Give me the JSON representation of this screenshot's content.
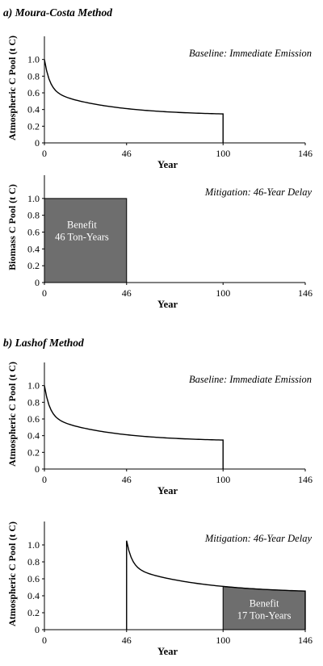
{
  "sections": [
    {
      "id": "a",
      "title": "a) Moura-Costa Method"
    },
    {
      "id": "b",
      "title": "b) Lashof Method"
    }
  ],
  "chart_data": [
    {
      "id": "mc-baseline",
      "section": "a",
      "type": "line",
      "label": "Baseline: Immediate Emission",
      "ylabel": "Atmospheric C Pool (t C)",
      "xlabel": "Year",
      "xlim": [
        0,
        146
      ],
      "ylim": [
        0,
        1.2
      ],
      "xticks": [
        0,
        46,
        100,
        146
      ],
      "yticks": [
        0,
        0.2,
        0.4,
        0.6,
        0.8,
        1.0
      ],
      "series": [
        {
          "kind": "decay",
          "x_start": 0,
          "x_end": 100,
          "y_end": 0.33,
          "drop_to_zero_at": 100
        }
      ]
    },
    {
      "id": "mc-mitigation",
      "section": "a",
      "type": "area",
      "label": "Mitigation: 46-Year Delay",
      "ylabel": "Biomass C Pool (t C)",
      "xlabel": "Year",
      "xlim": [
        0,
        146
      ],
      "ylim": [
        0,
        1.2
      ],
      "xticks": [
        0,
        46,
        100,
        146
      ],
      "yticks": [
        0,
        0.2,
        0.4,
        0.6,
        0.8,
        1.0
      ],
      "area": {
        "x_start": 0,
        "x_end": 46,
        "y": 1.0,
        "color": "#6e6e6e"
      },
      "annotation": {
        "line1": "Benefit",
        "line2": "46 Ton-Years",
        "x": 21,
        "y": 0.65
      }
    },
    {
      "id": "lashof-baseline",
      "section": "b",
      "type": "line",
      "label": "Baseline: Immediate Emission",
      "ylabel": "Atmospheric C Pool (t C)",
      "xlabel": "Year",
      "xlim": [
        0,
        146
      ],
      "ylim": [
        0,
        1.2
      ],
      "xticks": [
        0,
        46,
        100,
        146
      ],
      "yticks": [
        0,
        0.2,
        0.4,
        0.6,
        0.8,
        1.0
      ],
      "series": [
        {
          "kind": "decay",
          "x_start": 0,
          "x_end": 100,
          "y_end": 0.33,
          "drop_to_zero_at": 100
        }
      ]
    },
    {
      "id": "lashof-mitigation",
      "section": "b",
      "type": "area",
      "label": "Mitigation: 46-Year Delay",
      "ylabel": "Atmospheric C Pool (t C)",
      "xlabel": "Year",
      "xlim": [
        0,
        146
      ],
      "ylim": [
        0,
        1.2
      ],
      "xticks": [
        0,
        46,
        100,
        146
      ],
      "yticks": [
        0,
        0.2,
        0.4,
        0.6,
        0.8,
        1.0
      ],
      "series": [
        {
          "kind": "decay",
          "x_start": 46,
          "x_end": 146,
          "y_start": 1.05,
          "y_end": 0.43,
          "drop_to_zero_at": 146
        }
      ],
      "area": {
        "x_start": 100,
        "x_end": 146,
        "color": "#6e6e6e"
      },
      "annotation": {
        "line1": "Benefit",
        "line2": "17 Ton-Years",
        "x": 123,
        "y": 0.27
      }
    }
  ]
}
